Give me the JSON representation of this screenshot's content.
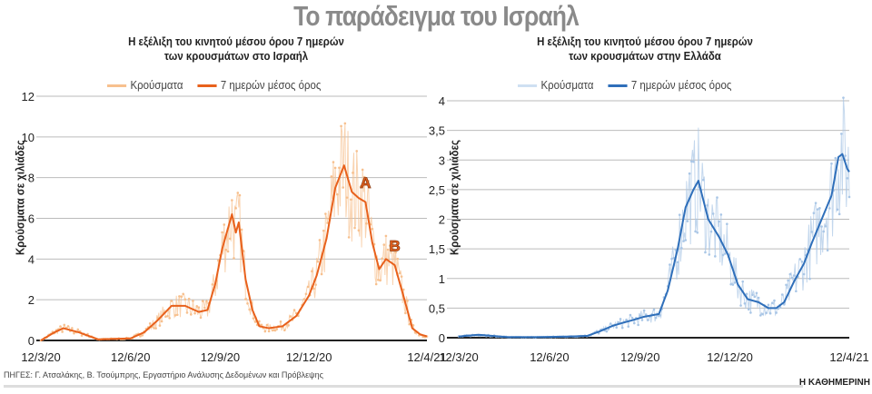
{
  "title": "Το παράδειγμα του Ισραήλ",
  "source": "ΠΗΓΕΣ: Γ. Ατσαλάκης, Β. Τσούμπρης, Εργαστήριο Ανάλυσης Δεδομένων και Πρόβλεψης",
  "brand": "Η ΚΑΘΗΜΕΡΙΝΗ",
  "chart_data": [
    {
      "type": "line",
      "title": "Η εξέλιξη του κινητού μέσου όρου 7 ημερών των κρουσμάτων στο Ισραήλ",
      "title_lines": [
        "Η εξέλιξη του κινητού μέσου όρου 7 ημερών",
        "των κρουσμάτων στο Ισραήλ"
      ],
      "ylabel": "Κρούσματα σε χιλιάδες",
      "ylim": [
        0,
        12
      ],
      "yticks": [
        "0",
        "2",
        "4",
        "6",
        "8",
        "10",
        "12"
      ],
      "ytick_values": [
        0,
        2,
        4,
        6,
        8,
        10,
        12
      ],
      "xlim": [
        "2020-03-12",
        "2021-04-12"
      ],
      "xticks": [
        "12/3/20",
        "12/6/20",
        "12/9/20",
        "12/12/20",
        "12/4/21"
      ],
      "xtick_dates": [
        "2020-03-12",
        "2020-06-12",
        "2020-09-12",
        "2020-12-12",
        "2021-04-12"
      ],
      "grid": true,
      "legend": "top",
      "colors": {
        "daily": "#f7c08e",
        "avg": "#e8611c"
      },
      "series": [
        {
          "name": "Κρούσματα",
          "style": "points"
        },
        {
          "name": "7 ημερών μέσος όρος",
          "style": "line",
          "x": [
            "2020-03-12",
            "2020-03-26",
            "2020-04-04",
            "2020-04-20",
            "2020-05-10",
            "2020-06-12",
            "2020-06-26",
            "2020-07-10",
            "2020-07-24",
            "2020-08-07",
            "2020-08-21",
            "2020-08-30",
            "2020-09-07",
            "2020-09-14",
            "2020-09-24",
            "2020-09-28",
            "2020-10-01",
            "2020-10-08",
            "2020-10-15",
            "2020-10-22",
            "2020-11-01",
            "2020-11-15",
            "2020-11-29",
            "2020-12-12",
            "2020-12-20",
            "2020-12-30",
            "2021-01-08",
            "2021-01-17",
            "2021-01-25",
            "2021-02-01",
            "2021-02-08",
            "2021-02-15",
            "2021-02-22",
            "2021-03-01",
            "2021-03-10",
            "2021-03-20",
            "2021-03-28",
            "2021-04-05",
            "2021-04-12"
          ],
          "y": [
            0,
            0.4,
            0.6,
            0.4,
            0.05,
            0.1,
            0.4,
            1.0,
            1.7,
            1.7,
            1.4,
            1.5,
            2.8,
            4.5,
            6.2,
            5.3,
            5.8,
            3.0,
            1.5,
            0.7,
            0.6,
            0.7,
            1.2,
            2.2,
            3.2,
            5.0,
            7.5,
            8.6,
            7.3,
            7.0,
            6.8,
            4.8,
            3.5,
            4.0,
            3.7,
            2.0,
            0.6,
            0.3,
            0.2
          ]
        }
      ],
      "annotations": [
        {
          "text": "A",
          "x": "2021-02-08",
          "y": 7.5
        },
        {
          "text": "B",
          "x": "2021-03-10",
          "y": 4.4
        }
      ]
    },
    {
      "type": "line",
      "title": "Η εξέλιξη του κινητού μέσου όρου 7 ημερών των κρουσμάτων στην Ελλάδα",
      "title_lines": [
        "Η εξέλιξη του κινητού μέσου όρου 7 ημερών",
        "των κρουσμάτων στην Ελλάδα"
      ],
      "ylabel": "Κρούσματα σε χιλιάδες",
      "ylim": [
        0,
        4
      ],
      "yticks": [
        "0",
        "0,5",
        "1",
        "1,5",
        "2",
        "2,5",
        "3",
        "3,5",
        "4"
      ],
      "ytick_values": [
        0,
        0.5,
        1,
        1.5,
        2,
        2.5,
        3,
        3.5,
        4
      ],
      "xlim": [
        "2020-03-12",
        "2021-04-12"
      ],
      "xticks": [
        "12/3/20",
        "12/6/20",
        "12/9/20",
        "12/12/20",
        "12/4/21"
      ],
      "xtick_dates": [
        "2020-03-12",
        "2020-06-12",
        "2020-09-12",
        "2020-12-12",
        "2021-04-12"
      ],
      "grid": true,
      "legend": "top",
      "colors": {
        "daily": "#a9c6e6",
        "avg": "#2f6fba"
      },
      "series": [
        {
          "name": "Κρούσματα",
          "style": "points"
        },
        {
          "name": "7 ημερών μέσος όρος",
          "style": "line",
          "x": [
            "2020-03-12",
            "2020-04-01",
            "2020-05-01",
            "2020-06-01",
            "2020-07-01",
            "2020-07-20",
            "2020-08-01",
            "2020-08-15",
            "2020-08-25",
            "2020-09-05",
            "2020-09-15",
            "2020-10-01",
            "2020-10-10",
            "2020-10-20",
            "2020-10-28",
            "2020-11-05",
            "2020-11-10",
            "2020-11-20",
            "2020-12-01",
            "2020-12-10",
            "2020-12-20",
            "2020-12-30",
            "2021-01-10",
            "2021-01-20",
            "2021-01-28",
            "2021-02-05",
            "2021-02-15",
            "2021-02-25",
            "2021-03-05",
            "2021-03-15",
            "2021-03-25",
            "2021-04-01",
            "2021-04-05",
            "2021-04-10",
            "2021-04-12"
          ],
          "y": [
            0.02,
            0.05,
            0.01,
            0.01,
            0.02,
            0.03,
            0.1,
            0.2,
            0.25,
            0.3,
            0.35,
            0.4,
            0.8,
            1.5,
            2.2,
            2.5,
            2.65,
            2.0,
            1.7,
            1.4,
            0.9,
            0.65,
            0.6,
            0.5,
            0.5,
            0.6,
            0.95,
            1.25,
            1.6,
            2.0,
            2.4,
            3.05,
            3.1,
            2.85,
            2.8
          ]
        }
      ]
    }
  ]
}
